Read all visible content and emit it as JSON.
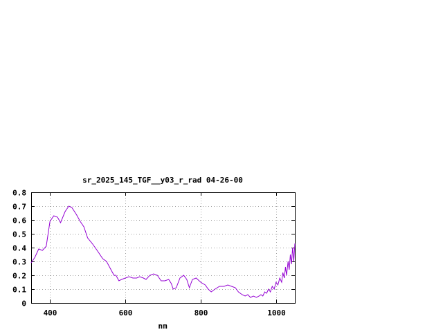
{
  "chart_data": {
    "type": "line",
    "title": "sr_2025_145_TGF__y03_r_rad 04-26-00",
    "xlabel": "nm",
    "ylabel": "",
    "xlim": [
      350,
      1050
    ],
    "ylim": [
      0,
      0.8
    ],
    "xticks": [
      400,
      600,
      800,
      1000
    ],
    "xtick_labels": [
      "400",
      "600",
      "800",
      "1000"
    ],
    "yticks": [
      0,
      0.1,
      0.2,
      0.3,
      0.4,
      0.5,
      0.6,
      0.7,
      0.8
    ],
    "ytick_labels": [
      "0",
      "0.1",
      "0.2",
      "0.3",
      "0.4",
      "0.5",
      "0.6",
      "0.7",
      "0.8"
    ],
    "grid": true,
    "line_color": "#9400d3",
    "series": [
      {
        "points": [
          [
            350,
            0.29
          ],
          [
            360,
            0.33
          ],
          [
            370,
            0.39
          ],
          [
            380,
            0.38
          ],
          [
            390,
            0.41
          ],
          [
            400,
            0.59
          ],
          [
            410,
            0.63
          ],
          [
            420,
            0.62
          ],
          [
            428,
            0.58
          ],
          [
            440,
            0.66
          ],
          [
            450,
            0.7
          ],
          [
            458,
            0.69
          ],
          [
            470,
            0.64
          ],
          [
            480,
            0.59
          ],
          [
            490,
            0.55
          ],
          [
            500,
            0.47
          ],
          [
            512,
            0.43
          ],
          [
            525,
            0.38
          ],
          [
            540,
            0.32
          ],
          [
            550,
            0.3
          ],
          [
            560,
            0.25
          ],
          [
            570,
            0.2
          ],
          [
            575,
            0.2
          ],
          [
            583,
            0.16
          ],
          [
            590,
            0.17
          ],
          [
            600,
            0.18
          ],
          [
            610,
            0.19
          ],
          [
            620,
            0.18
          ],
          [
            630,
            0.18
          ],
          [
            638,
            0.19
          ],
          [
            648,
            0.18
          ],
          [
            655,
            0.17
          ],
          [
            665,
            0.2
          ],
          [
            675,
            0.21
          ],
          [
            685,
            0.2
          ],
          [
            695,
            0.16
          ],
          [
            705,
            0.16
          ],
          [
            715,
            0.17
          ],
          [
            722,
            0.14
          ],
          [
            727,
            0.1
          ],
          [
            735,
            0.11
          ],
          [
            745,
            0.18
          ],
          [
            755,
            0.2
          ],
          [
            763,
            0.17
          ],
          [
            770,
            0.11
          ],
          [
            778,
            0.17
          ],
          [
            788,
            0.18
          ],
          [
            800,
            0.15
          ],
          [
            812,
            0.13
          ],
          [
            820,
            0.1
          ],
          [
            828,
            0.08
          ],
          [
            838,
            0.1
          ],
          [
            850,
            0.12
          ],
          [
            862,
            0.12
          ],
          [
            872,
            0.13
          ],
          [
            882,
            0.12
          ],
          [
            892,
            0.11
          ],
          [
            900,
            0.08
          ],
          [
            910,
            0.06
          ],
          [
            918,
            0.05
          ],
          [
            925,
            0.06
          ],
          [
            932,
            0.04
          ],
          [
            940,
            0.05
          ],
          [
            948,
            0.04
          ],
          [
            955,
            0.05
          ],
          [
            960,
            0.06
          ],
          [
            965,
            0.05
          ],
          [
            970,
            0.08
          ],
          [
            975,
            0.07
          ],
          [
            980,
            0.1
          ],
          [
            985,
            0.08
          ],
          [
            990,
            0.12
          ],
          [
            995,
            0.1
          ],
          [
            1000,
            0.15
          ],
          [
            1005,
            0.13
          ],
          [
            1010,
            0.18
          ],
          [
            1015,
            0.15
          ],
          [
            1018,
            0.22
          ],
          [
            1022,
            0.18
          ],
          [
            1025,
            0.26
          ],
          [
            1028,
            0.2
          ],
          [
            1032,
            0.3
          ],
          [
            1035,
            0.24
          ],
          [
            1038,
            0.35
          ],
          [
            1041,
            0.28
          ],
          [
            1044,
            0.4
          ],
          [
            1047,
            0.3
          ],
          [
            1050,
            0.43
          ]
        ]
      }
    ]
  }
}
